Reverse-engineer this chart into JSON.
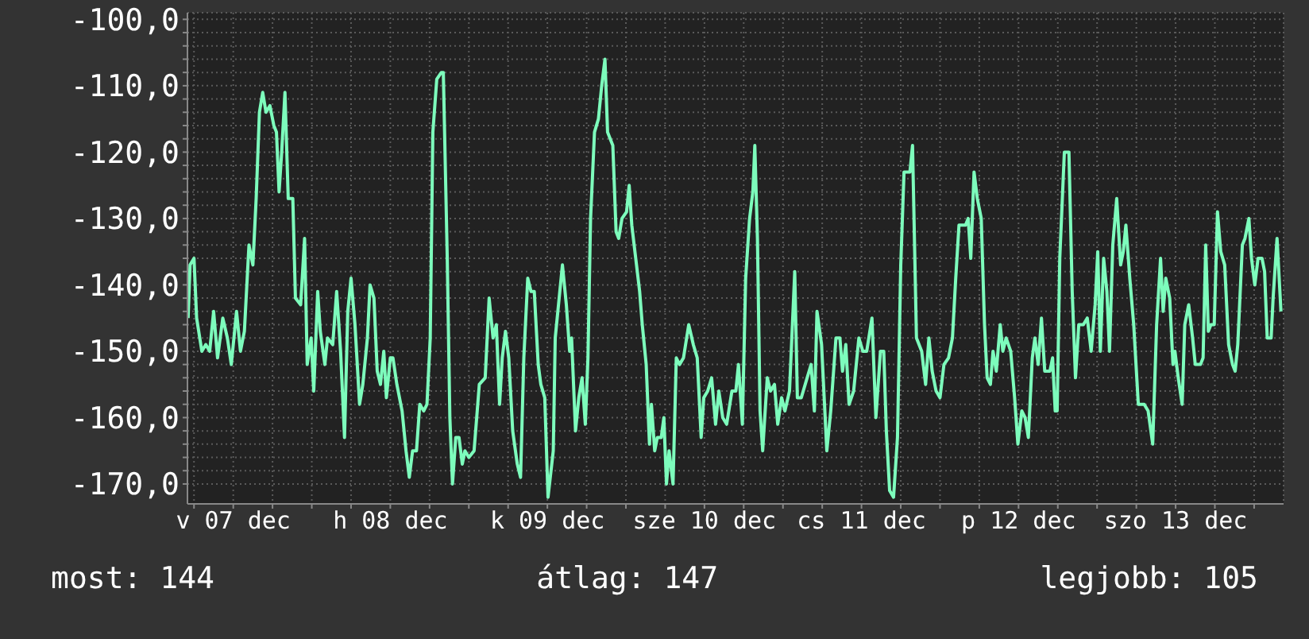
{
  "chart_data": {
    "type": "line",
    "color": "#7dfcbc",
    "grid": true,
    "xlim": [
      "--12-07T05:00",
      "--12-14T04:30"
    ],
    "ylim": [
      -173,
      -99
    ],
    "xticks": [
      {
        "value": "--12-07T06:00",
        "label": null
      },
      {
        "value": "--12-07T12:00",
        "label": "v 07 dec"
      },
      {
        "value": "--12-07T18:00",
        "label": null
      },
      {
        "value": "--12-08T00:00",
        "label": null
      },
      {
        "value": "--12-08T06:00",
        "label": null
      },
      {
        "value": "--12-08T12:00",
        "label": "h 08 dec"
      },
      {
        "value": "--12-08T18:00",
        "label": null
      },
      {
        "value": "--12-09T00:00",
        "label": null
      },
      {
        "value": "--12-09T06:00",
        "label": null
      },
      {
        "value": "--12-09T12:00",
        "label": "k 09 dec"
      },
      {
        "value": "--12-09T18:00",
        "label": null
      },
      {
        "value": "--12-10T00:00",
        "label": null
      },
      {
        "value": "--12-10T06:00",
        "label": null
      },
      {
        "value": "--12-10T12:00",
        "label": "sze 10 dec"
      },
      {
        "value": "--12-10T18:00",
        "label": null
      },
      {
        "value": "--12-11T00:00",
        "label": null
      },
      {
        "value": "--12-11T06:00",
        "label": null
      },
      {
        "value": "--12-11T12:00",
        "label": "cs 11 dec"
      },
      {
        "value": "--12-11T18:00",
        "label": null
      },
      {
        "value": "--12-12T00:00",
        "label": null
      },
      {
        "value": "--12-12T06:00",
        "label": null
      },
      {
        "value": "--12-12T12:00",
        "label": "p 12 dec"
      },
      {
        "value": "--12-12T18:00",
        "label": null
      },
      {
        "value": "--12-13T00:00",
        "label": null
      },
      {
        "value": "--12-13T06:00",
        "label": null
      },
      {
        "value": "--12-13T12:00",
        "label": "szo 13 dec"
      },
      {
        "value": "--12-13T18:00",
        "label": null
      },
      {
        "value": "--12-14T00:00",
        "label": null
      }
    ],
    "yticks": [
      {
        "value": -170,
        "label": "-170,0"
      },
      {
        "value": -168,
        "label": null
      },
      {
        "value": -166,
        "label": null
      },
      {
        "value": -164,
        "label": null
      },
      {
        "value": -162,
        "label": null
      },
      {
        "value": -160,
        "label": "-160,0"
      },
      {
        "value": -158,
        "label": null
      },
      {
        "value": -156,
        "label": null
      },
      {
        "value": -154,
        "label": null
      },
      {
        "value": -152,
        "label": null
      },
      {
        "value": -150,
        "label": "-150,0"
      },
      {
        "value": -148,
        "label": null
      },
      {
        "value": -146,
        "label": null
      },
      {
        "value": -144,
        "label": null
      },
      {
        "value": -142,
        "label": null
      },
      {
        "value": -140,
        "label": "-140,0"
      },
      {
        "value": -138,
        "label": null
      },
      {
        "value": -136,
        "label": null
      },
      {
        "value": -134,
        "label": null
      },
      {
        "value": -132,
        "label": null
      },
      {
        "value": -130,
        "label": "-130,0"
      },
      {
        "value": -128,
        "label": null
      },
      {
        "value": -126,
        "label": null
      },
      {
        "value": -124,
        "label": null
      },
      {
        "value": -122,
        "label": null
      },
      {
        "value": -120,
        "label": "-120,0"
      },
      {
        "value": -118,
        "label": null
      },
      {
        "value": -116,
        "label": null
      },
      {
        "value": -114,
        "label": null
      },
      {
        "value": -112,
        "label": null
      },
      {
        "value": -110,
        "label": "-110,0"
      },
      {
        "value": -108,
        "label": null
      },
      {
        "value": -106,
        "label": null
      },
      {
        "value": -104,
        "label": null
      },
      {
        "value": -102,
        "label": null
      },
      {
        "value": -100,
        "label": "-100,0"
      }
    ],
    "x": [
      "--12-07T05:06",
      "--12-07T05:24",
      "--12-07T06:00",
      "--12-07T06:24",
      "--12-07T07:12",
      "--12-07T07:48",
      "--12-07T08:24",
      "--12-07T09:00",
      "--12-07T09:36",
      "--12-07T10:24",
      "--12-07T11:06",
      "--12-07T11:42",
      "--12-07T12:06",
      "--12-07T12:30",
      "--12-07T13:06",
      "--12-07T13:42",
      "--12-07T14:24",
      "--12-07T15:00",
      "--12-07T15:30",
      "--12-07T16:00",
      "--12-07T16:30",
      "--12-07T17:00",
      "--12-07T17:36",
      "--12-07T18:12",
      "--12-07T18:36",
      "--12-07T19:00",
      "--12-07T19:24",
      "--12-07T19:54",
      "--12-07T20:24",
      "--12-07T21:06",
      "--12-07T21:30",
      "--12-07T22:18",
      "--12-07T22:54",
      "--12-07T23:18",
      "--12-07T23:54",
      "--12-08T00:18",
      "--12-08T00:54",
      "--12-08T01:18",
      "--12-08T02:00",
      "--12-08T02:24",
      "--12-08T03:12",
      "--12-08T03:48",
      "--12-08T04:24",
      "--12-08T05:00",
      "--12-08T05:30",
      "--12-08T06:00",
      "--12-08T06:36",
      "--12-08T07:18",
      "--12-08T07:48",
      "--12-08T08:30",
      "--12-08T08:54",
      "--12-08T09:30",
      "--12-08T10:00",
      "--12-08T10:30",
      "--12-08T11:00",
      "--12-08T11:24",
      "--12-08T12:00",
      "--12-08T12:24",
      "--12-08T13:00",
      "--12-08T13:48",
      "--12-08T14:24",
      "--12-08T14:54",
      "--12-08T15:24",
      "--12-08T16:00",
      "--12-08T16:30",
      "--12-08T17:06",
      "--12-08T17:36",
      "--12-08T18:06",
      "--12-08T18:30",
      "--12-08T19:06",
      "--12-08T19:48",
      "--12-08T20:06",
      "--12-08T20:42",
      "--12-08T21:06",
      "--12-08T21:30",
      "--12-08T22:00",
      "--12-08T22:30",
      "--12-08T23:00",
      "--12-08T23:24",
      "--12-09T00:00",
      "--12-09T00:48",
      "--12-09T01:36",
      "--12-09T02:30",
      "--12-09T03:06",
      "--12-09T03:42",
      "--12-09T04:12",
      "--12-09T04:42",
      "--12-09T05:06",
      "--12-09T05:36",
      "--12-09T06:06",
      "--12-09T06:42",
      "--12-09T07:24",
      "--12-09T07:54",
      "--12-09T08:24",
      "--12-09T09:00",
      "--12-09T09:30",
      "--12-09T10:00",
      "--12-09T10:36",
      "--12-09T11:00",
      "--12-09T11:36",
      "--12-09T12:06",
      "--12-09T12:54",
      "--12-09T13:12",
      "--12-09T13:54",
      "--12-09T14:18",
      "--12-09T14:54",
      "--12-09T15:24",
      "--12-09T15:42",
      "--12-09T16:18",
      "--12-09T16:48",
      "--12-09T17:18",
      "--12-09T17:48",
      "--12-09T18:12",
      "--12-09T18:36",
      "--12-09T19:12",
      "--12-09T19:48",
      "--12-09T20:18",
      "--12-09T20:48",
      "--12-09T21:12",
      "--12-09T22:00",
      "--12-09T22:30",
      "--12-09T22:54",
      "--12-09T23:24",
      "--12-10T00:06",
      "--12-10T00:30",
      "--12-10T00:54",
      "--12-10T01:30",
      "--12-10T02:06",
      "--12-10T02:30",
      "--12-10T03:06",
      "--12-10T03:36",
      "--12-10T03:54",
      "--12-10T04:24",
      "--12-10T04:48",
      "--12-10T05:24",
      "--12-10T05:48",
      "--12-10T06:12",
      "--12-10T06:36",
      "--12-10T07:12",
      "--12-10T07:42",
      "--12-10T08:12",
      "--12-10T08:48",
      "--12-10T09:36",
      "--12-10T10:18",
      "--12-10T10:54",
      "--12-10T11:30",
      "--12-10T11:54",
      "--12-10T12:30",
      "--12-10T13:06",
      "--12-10T13:42",
      "--12-10T14:12",
      "--12-10T14:48",
      "--12-10T15:24",
      "--12-10T16:12",
      "--12-10T16:48",
      "--12-10T17:12",
      "--12-10T17:48",
      "--12-10T18:18",
      "--12-10T18:54",
      "--12-10T19:24",
      "--12-10T19:42",
      "--12-10T20:06",
      "--12-10T20:30",
      "--12-10T20:54",
      "--12-10T21:36",
      "--12-10T22:06",
      "--12-10T22:42",
      "--12-10T23:12",
      "--12-10T23:48",
      "--12-11T00:18",
      "--12-11T01:00",
      "--12-11T01:48",
      "--12-11T02:12",
      "--12-11T02:48",
      "--12-11T03:24",
      "--12-11T04:18",
      "--12-11T04:48",
      "--12-11T05:12",
      "--12-11T05:54",
      "--12-11T06:42",
      "--12-11T07:18",
      "--12-11T08:06",
      "--12-11T08:42",
      "--12-11T09:06",
      "--12-11T09:36",
      "--12-11T10:06",
      "--12-11T10:48",
      "--12-11T11:36",
      "--12-11T12:12",
      "--12-11T12:48",
      "--12-11T13:36",
      "--12-11T14:12",
      "--12-11T14:54",
      "--12-11T15:24",
      "--12-11T15:48",
      "--12-11T16:18",
      "--12-11T16:54",
      "--12-11T17:30",
      "--12-11T18:00",
      "--12-11T18:30",
      "--12-11T19:24",
      "--12-11T19:48",
      "--12-11T20:24",
      "--12-11T21:12",
      "--12-11T21:48",
      "--12-11T22:18",
      "--12-11T22:48",
      "--12-11T23:24",
      "--12-12T00:00",
      "--12-12T00:36",
      "--12-12T01:18",
      "--12-12T01:54",
      "--12-12T02:24",
      "--12-12T02:54",
      "--12-12T03:54",
      "--12-12T04:18",
      "--12-12T04:42",
      "--12-12T05:12",
      "--12-12T05:42",
      "--12-12T06:18",
      "--12-12T06:48",
      "--12-12T07:12",
      "--12-12T07:42",
      "--12-12T08:06",
      "--12-12T08:36",
      "--12-12T09:12",
      "--12-12T09:36",
      "--12-12T10:06",
      "--12-12T10:48",
      "--12-12T11:24",
      "--12-12T11:54",
      "--12-12T12:30",
      "--12-12T13:00",
      "--12-12T13:30",
      "--12-12T14:06",
      "--12-12T14:30",
      "--12-12T15:00",
      "--12-12T15:30",
      "--12-12T16:00",
      "--12-12T16:48",
      "--12-12T17:12",
      "--12-12T17:36",
      "--12-12T17:54",
      "--12-12T18:18",
      "--12-12T19:00",
      "--12-12T19:42",
      "--12-12T20:12",
      "--12-12T20:42",
      "--12-12T21:12",
      "--12-12T21:54",
      "--12-12T22:30",
      "--12-12T23:06",
      "--12-12T23:42",
      "--12-13T00:06",
      "--12-13T00:30",
      "--12-13T01:00",
      "--12-13T01:30",
      "--12-13T01:54",
      "--12-13T02:24",
      "--12-13T03:00",
      "--12-13T03:36",
      "--12-13T04:00",
      "--12-13T04:24",
      "--12-13T05:00",
      "--12-13T05:36",
      "--12-13T06:18",
      "--12-13T07:12",
      "--12-13T07:48",
      "--12-13T08:30",
      "--12-13T09:06",
      "--12-13T09:42",
      "--12-13T10:06",
      "--12-13T10:30",
      "--12-13T11:06",
      "--12-13T11:36",
      "--12-13T11:54",
      "--12-13T12:24",
      "--12-13T13:00",
      "--12-13T13:24",
      "--12-13T14:00",
      "--12-13T14:36",
      "--12-13T15:00",
      "--12-13T15:48",
      "--12-13T16:12",
      "--12-13T16:36",
      "--12-13T17:00",
      "--12-13T17:24",
      "--12-13T17:54",
      "--12-13T18:24",
      "--12-13T18:54",
      "--12-13T19:30",
      "--12-13T20:06",
      "--12-13T20:42",
      "--12-13T21:06",
      "--12-13T21:30",
      "--12-13T22:12",
      "--12-13T22:36",
      "--12-13T23:12",
      "--12-13T23:36",
      "--12-14T00:06",
      "--12-14T00:36",
      "--12-14T01:12",
      "--12-14T01:36",
      "--12-14T02:00",
      "--12-14T02:36",
      "--12-14T02:54",
      "--12-14T03:30",
      "--12-14T04:06"
    ],
    "values": [
      -145,
      -137,
      -136,
      -145,
      -150,
      -149,
      -150,
      -144,
      -151,
      -145,
      -148,
      -152,
      -148,
      -144,
      -150,
      -147,
      -134,
      -137,
      -127,
      -114,
      -111,
      -114,
      -113,
      -116,
      -117,
      -126,
      -120,
      -111,
      -127,
      -127,
      -142,
      -143,
      -133,
      -152,
      -148,
      -156,
      -141,
      -147,
      -152,
      -148,
      -149,
      -141,
      -150,
      -163,
      -144,
      -139,
      -146,
      -158,
      -155,
      -148,
      -140,
      -142,
      -153,
      -155,
      -150,
      -157,
      -151,
      -151,
      -155,
      -159,
      -165,
      -169,
      -165,
      -165,
      -158,
      -159,
      -158,
      -148,
      -117,
      -109,
      -108,
      -108,
      -136,
      -160,
      -170,
      -163,
      -163,
      -167,
      -165,
      -166,
      -165,
      -155,
      -154,
      -142,
      -148,
      -146,
      -158,
      -151,
      -147,
      -151,
      -162,
      -167,
      -169,
      -151,
      -139,
      -141,
      -141,
      -152,
      -155,
      -157,
      -172,
      -165,
      -148,
      -141,
      -137,
      -143,
      -150,
      -148,
      -162,
      -157,
      -154,
      -161,
      -151,
      -130,
      -117,
      -115,
      -110,
      -106,
      -117,
      -119,
      -132,
      -133,
      -130,
      -129,
      -125,
      -131,
      -136,
      -141,
      -146,
      -152,
      -164,
      -158,
      -165,
      -163,
      -163,
      -160,
      -170,
      -165,
      -170,
      -151,
      -152,
      -151,
      -146,
      -149,
      -151,
      -163,
      -157,
      -156,
      -154,
      -161,
      -156,
      -160,
      -161,
      -156,
      -156,
      -152,
      -161,
      -139,
      -130,
      -126,
      -119,
      -133,
      -159,
      -165,
      -154,
      -156,
      -155,
      -161,
      -157,
      -159,
      -156,
      -138,
      -157,
      -157,
      -155,
      -152,
      -159,
      -144,
      -149,
      -165,
      -159,
      -148,
      -148,
      -153,
      -149,
      -158,
      -156,
      -148,
      -150,
      -150,
      -145,
      -160,
      -150,
      -150,
      -162,
      -171,
      -172,
      -163,
      -137,
      -123,
      -123,
      -119,
      -148,
      -150,
      -155,
      -148,
      -153,
      -156,
      -157,
      -152,
      -151,
      -148,
      -139,
      -131,
      -131,
      -130,
      -136,
      -123,
      -127,
      -130,
      -146,
      -154,
      -155,
      -150,
      -153,
      -146,
      -150,
      -148,
      -150,
      -157,
      -164,
      -159,
      -160,
      -163,
      -151,
      -148,
      -152,
      -145,
      -153,
      -153,
      -151,
      -159,
      -159,
      -136,
      -120,
      -120,
      -141,
      -154,
      -146,
      -146,
      -145,
      -150,
      -143,
      -135,
      -150,
      -136,
      -141,
      -150,
      -134,
      -127,
      -137,
      -135,
      -131,
      -139,
      -146,
      -158,
      -158,
      -159,
      -164,
      -146,
      -136,
      -144,
      -139,
      -142,
      -152,
      -150,
      -154,
      -158,
      -146,
      -143,
      -148,
      -152,
      -152,
      -151,
      -134,
      -147,
      -146,
      -146,
      -129,
      -135,
      -137,
      -149,
      -152,
      -153,
      -149,
      -134,
      -133,
      -130,
      -136,
      -140,
      -136,
      -136,
      -138,
      -148,
      -148,
      -142,
      -133,
      -144
    ],
    "annotations": [
      "most: 144",
      "átlag: 147",
      "legjobb: 105"
    ]
  }
}
